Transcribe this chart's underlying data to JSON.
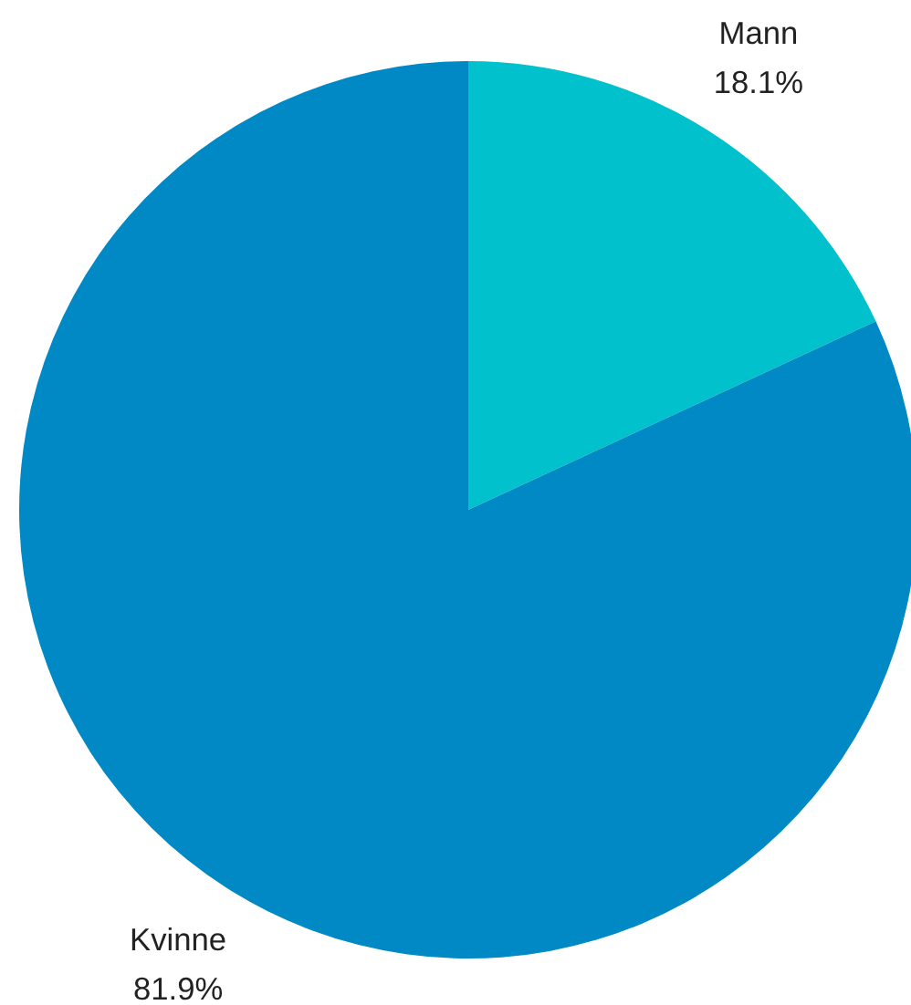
{
  "chart_data": {
    "type": "pie",
    "categories": [
      "Mann",
      "Kvinne"
    ],
    "values": [
      18.1,
      81.9
    ],
    "colors": [
      "#00c1cc",
      "#0089c4"
    ],
    "value_labels": [
      "18.1%",
      "81.9%"
    ]
  }
}
